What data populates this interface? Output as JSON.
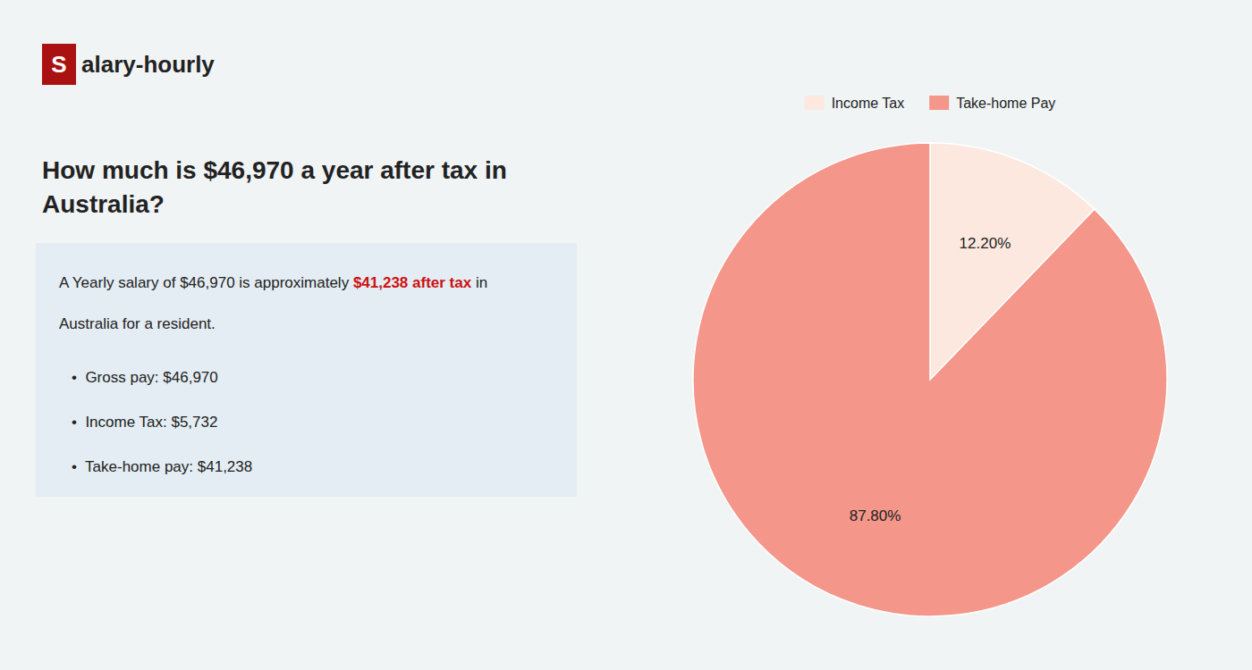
{
  "chart_data": {
    "type": "pie",
    "title": "How much is $46,970 a year after tax in\nAustralia?",
    "categories": [
      "Income Tax",
      "Take-home Pay"
    ],
    "values": [
      12.2,
      87.8
    ],
    "value_labels": [
      "12.20%",
      "87.80%"
    ],
    "colors": [
      "#fce8de",
      "#f4968a"
    ],
    "data_labels": true,
    "legend": "top",
    "annotations": [
      {
        "text": "S",
        "color": "#aa1111"
      },
      {
        "text": "alary-hourly",
        "color": "#222222"
      },
      {
        "text": "A Yearly salary of $46,970 is approximately ",
        "color": "#222222"
      },
      {
        "text": "$41,238 after tax",
        "color": "#cc1111"
      },
      {
        "text": " in",
        "color": "#222222"
      },
      {
        "text": "Australia for a resident.",
        "color": "#222222"
      },
      {
        "text": "•  Gross pay: $46,970",
        "color": "#222222"
      },
      {
        "text": "•  Income Tax: $5,732",
        "color": "#222222"
      },
      {
        "text": "•  Take-home pay: $41,238",
        "color": "#222222"
      }
    ]
  }
}
